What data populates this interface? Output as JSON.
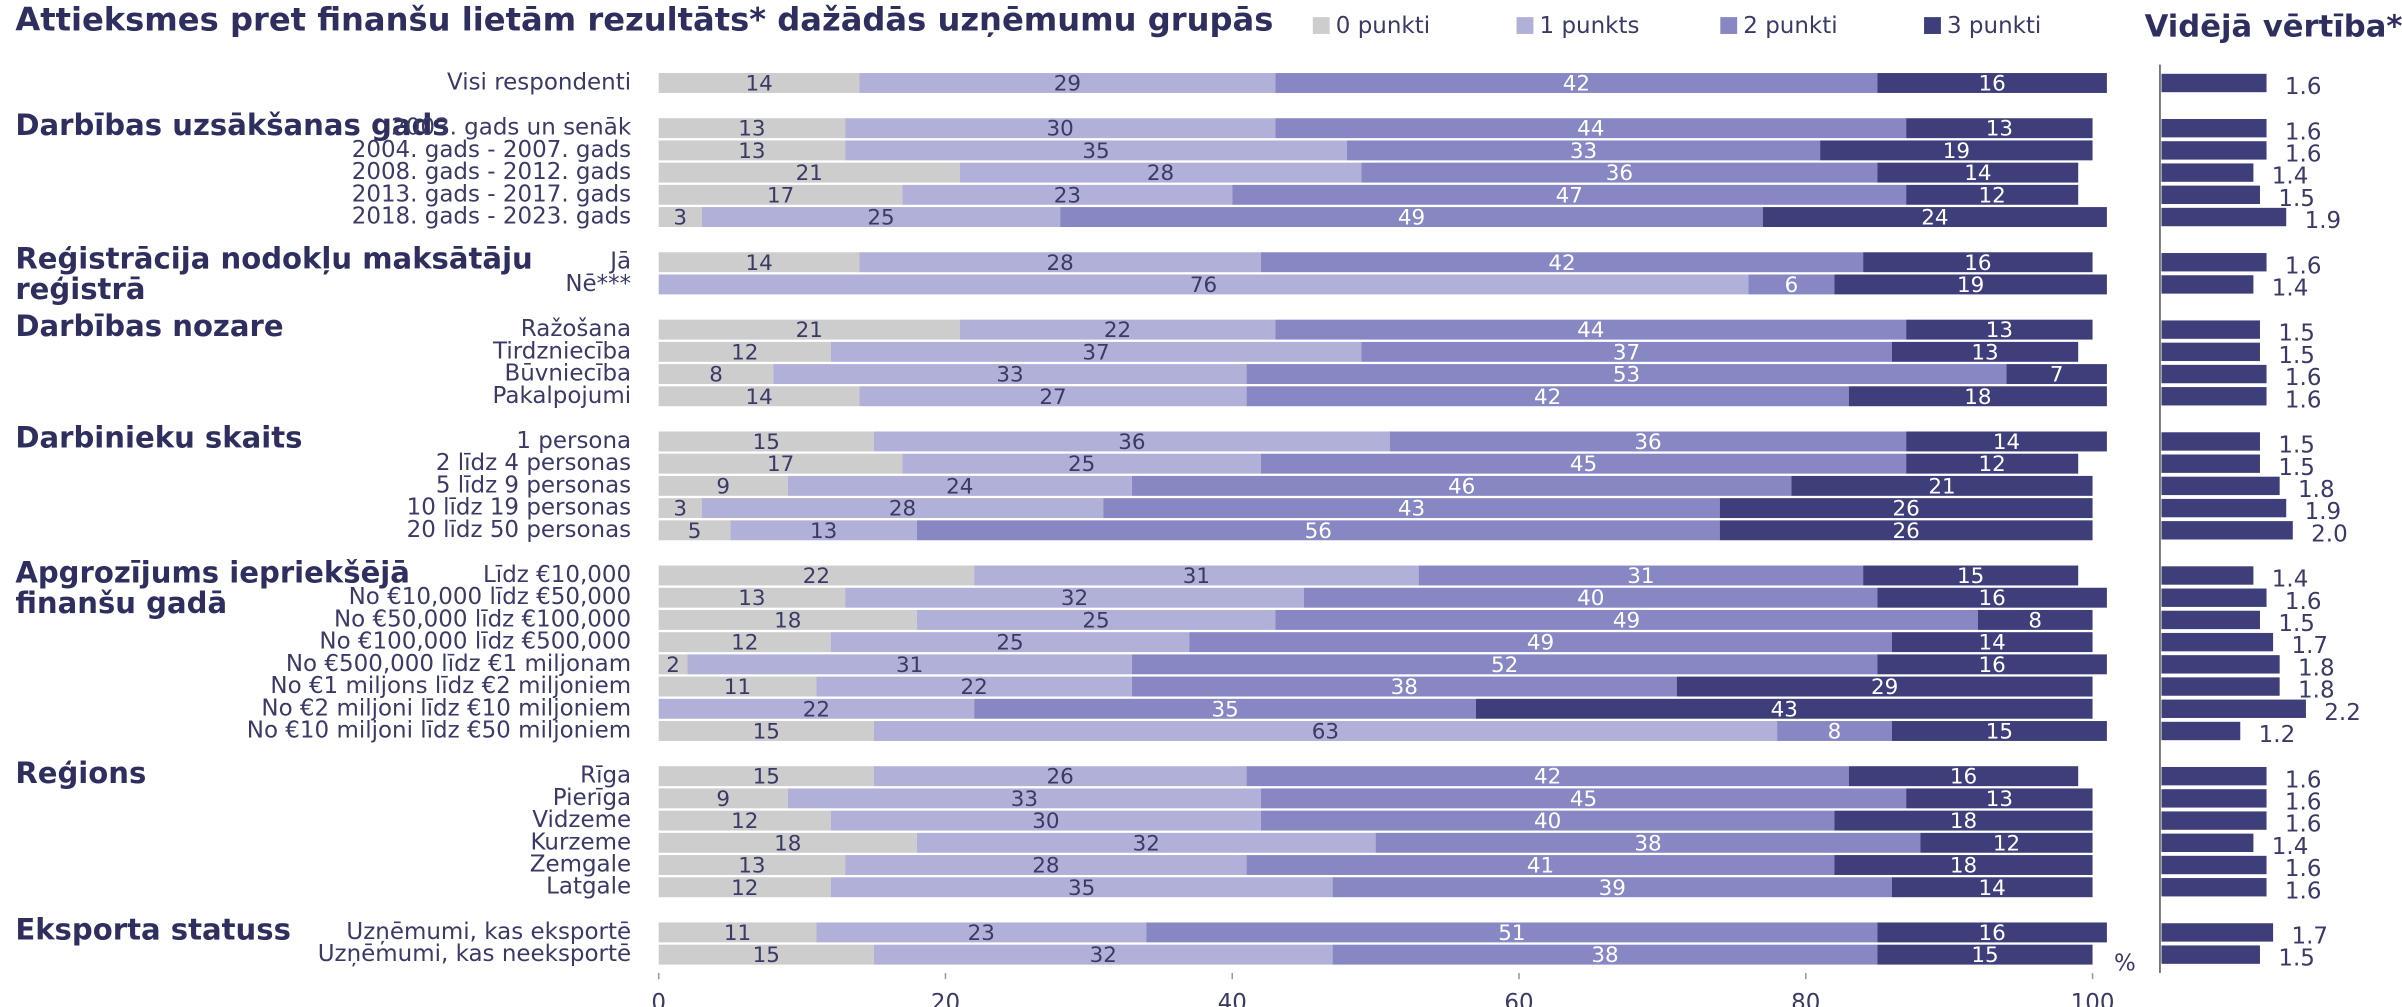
{
  "chart_data": {
    "type": "stacked-barh",
    "title": "Attieksmes pret finanšu lietām rezultāts* dažādās uzņēmumu grupās",
    "x_unit": "%",
    "xlim": [
      0,
      100
    ],
    "xticks": [
      0,
      20,
      40,
      60,
      80,
      100
    ],
    "categories": [
      "Visi respondenti",
      "2003. gads un senāk",
      "2004. gads - 2007. gads",
      "2008. gads - 2012. gads",
      "2013. gads - 2017. gads",
      "2018. gads - 2023. gads",
      "Jā",
      "Nē***",
      "Ražošana",
      "Tirdzniecība",
      "Būvniecība",
      "Pakalpojumi",
      "1 persona",
      "2 līdz 4 personas",
      "5 līdz 9 personas",
      "10 līdz 19 personas",
      "20 līdz 50 personas",
      "Līdz €10,000",
      "No €10,000 līdz €50,000",
      "No €50,000 līdz €100,000",
      "No €100,000 līdz €500,000",
      "No €500,000 līdz €1 miljonam",
      "No €1 miljons līdz €2 miljoniem",
      "No €2 miljoni līdz €10 miljoniem",
      "No €10 miljoni līdz €50 miljoniem",
      "Rīga",
      "Pierīga",
      "Vidzeme",
      "Kurzeme",
      "Zemgale",
      "Latgale",
      "Uzņēmumi, kas eksportē",
      "Uzņēmumi, kas neeksportē"
    ],
    "category_groups": [
      null,
      "Darbības uzsākšanas gads",
      null,
      null,
      null,
      null,
      "Reģistrācija nodokļu maksātāju reģistrā",
      null,
      "Darbības nozare",
      null,
      null,
      null,
      "Darbinieku skaits",
      null,
      null,
      null,
      null,
      "Apgrozījums iepriekšējā\nfinanšu gadā",
      null,
      null,
      null,
      null,
      null,
      null,
      null,
      "Reģions",
      null,
      null,
      null,
      null,
      null,
      "Eksporta statuss",
      null
    ],
    "series": [
      {
        "name": "0 punkti",
        "color": "#cdcdcd",
        "values": [
          14,
          13,
          13,
          21,
          17,
          3,
          14,
          null,
          21,
          12,
          8,
          14,
          15,
          17,
          9,
          3,
          5,
          22,
          13,
          18,
          12,
          2,
          11,
          null,
          15,
          15,
          9,
          12,
          18,
          13,
          12,
          11,
          15
        ]
      },
      {
        "name": "1 punkts",
        "color": "#b0b0d9",
        "values": [
          29,
          30,
          35,
          28,
          23,
          25,
          28,
          76,
          22,
          37,
          33,
          27,
          36,
          25,
          24,
          28,
          13,
          31,
          32,
          25,
          25,
          31,
          22,
          22,
          63,
          26,
          33,
          30,
          32,
          28,
          35,
          23,
          32
        ]
      },
      {
        "name": "2 punkti",
        "color": "#8787c4",
        "values": [
          42,
          44,
          33,
          36,
          47,
          49,
          42,
          6,
          44,
          37,
          53,
          42,
          36,
          45,
          46,
          43,
          56,
          31,
          40,
          49,
          49,
          52,
          38,
          35,
          8,
          42,
          45,
          40,
          38,
          41,
          39,
          51,
          38
        ]
      },
      {
        "name": "3 punkti",
        "color": "#3e3e7b",
        "values": [
          16,
          13,
          19,
          14,
          12,
          24,
          16,
          19,
          13,
          13,
          7,
          18,
          14,
          12,
          21,
          26,
          26,
          15,
          16,
          8,
          14,
          16,
          29,
          43,
          15,
          16,
          13,
          18,
          12,
          18,
          14,
          16,
          15
        ]
      }
    ],
    "mean_panel": {
      "title": "Vidējā vērtība**",
      "color": "#3e3e7b",
      "xlim": [
        0,
        3.5
      ],
      "values": [
        1.6,
        1.6,
        1.6,
        1.4,
        1.5,
        1.9,
        1.6,
        1.4,
        1.5,
        1.5,
        1.6,
        1.6,
        1.5,
        1.5,
        1.8,
        1.9,
        2.0,
        1.4,
        1.6,
        1.5,
        1.7,
        1.8,
        1.8,
        2.2,
        1.2,
        1.6,
        1.6,
        1.6,
        1.4,
        1.6,
        1.6,
        1.7,
        1.5
      ],
      "value_labels": [
        "1.6",
        "1.6",
        "1.6",
        "1.4",
        "1.5",
        "1.9",
        "1.6",
        "1.4",
        "1.5",
        "1.5",
        "1.6",
        "1.6",
        "1.5",
        "1.5",
        "1.8",
        "1.9",
        "2.0",
        "1.4",
        "1.6",
        "1.5",
        "1.7",
        "1.8",
        "1.8",
        "2.2",
        "1.2",
        "1.6",
        "1.6",
        "1.6",
        "1.4",
        "1.6",
        "1.6",
        "1.7",
        "1.5"
      ]
    }
  }
}
